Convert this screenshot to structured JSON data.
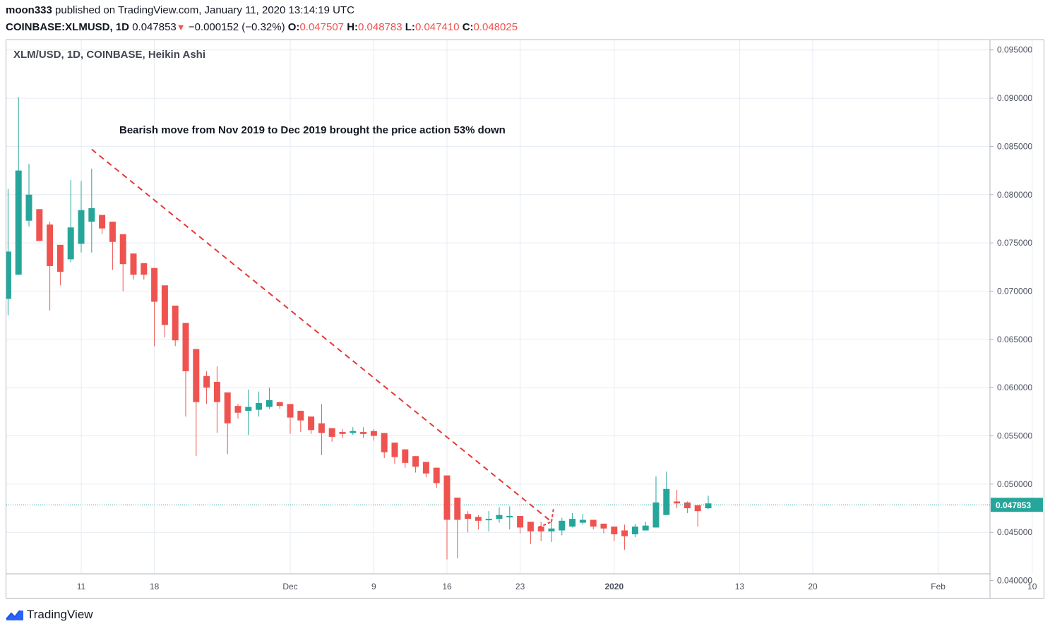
{
  "header": {
    "author": "moon333",
    "published_text": " published on TradingView.com, January 11, 2020 13:14:19 UTC",
    "symbol": "COINBASE:XLMUSD, 1D",
    "last": "0.047853",
    "change_arrow": "▼",
    "change": "−0.000152 (−0.32%)",
    "open_label": "O:",
    "open": "0.047507",
    "high_label": "H:",
    "high": "0.048783",
    "low_label": "L:",
    "low": "0.047410",
    "close_label": "C:",
    "close": "0.048025"
  },
  "footer": {
    "brand": "TradingView",
    "logo_icon": "tradingview-logo-icon"
  },
  "colors": {
    "up": "#26a69a",
    "down": "#ef5350",
    "grid": "#e6ebf2",
    "axis_text": "#4a4f5c",
    "annotation_line": "#e53935",
    "price_line": "#26a69a"
  },
  "chart_data": {
    "type": "candlestick",
    "title": "XLM/USD, 1D, COINBASE, Heikin Ashi",
    "annotation": "Bearish move from Nov 2019 to Dec 2019 brought the price action 53% down",
    "y_ticks": [
      "0.095000",
      "0.090000",
      "0.085000",
      "0.080000",
      "0.075000",
      "0.070000",
      "0.065000",
      "0.060000",
      "0.055000",
      "0.050000",
      "0.045000",
      "0.040000"
    ],
    "y_tick_values": [
      0.095,
      0.09,
      0.085,
      0.08,
      0.075,
      0.07,
      0.065,
      0.06,
      0.055,
      0.05,
      0.045,
      0.04
    ],
    "ylim": [
      0.04,
      0.0955
    ],
    "x_ticks": [
      {
        "label": "11",
        "day": 11,
        "bold": false
      },
      {
        "label": "18",
        "day": 18,
        "bold": false
      },
      {
        "label": "Dec",
        "day": 31,
        "bold": false
      },
      {
        "label": "9",
        "day": 39,
        "bold": false
      },
      {
        "label": "16",
        "day": 46,
        "bold": false
      },
      {
        "label": "23",
        "day": 53,
        "bold": false
      },
      {
        "label": "2020",
        "day": 62,
        "bold": true
      },
      {
        "label": "13",
        "day": 74,
        "bold": false
      },
      {
        "label": "20",
        "day": 81,
        "bold": false
      },
      {
        "label": "Feb",
        "day": 93,
        "bold": false
      },
      {
        "label": "10",
        "day": 102,
        "bold": false
      }
    ],
    "x_range_days": [
      4,
      103.5
    ],
    "last_price": 0.047853,
    "last_price_label": "0.047853",
    "trend_line": {
      "from": {
        "day": 12,
        "price": 0.0847
      },
      "to": {
        "day": 56,
        "price": 0.0461
      },
      "tail_to": {
        "day": 56.2,
        "price": 0.0475
      }
    },
    "candles": [
      {
        "day": 4,
        "o": 0.0692,
        "h": 0.0806,
        "l": 0.0675,
        "c": 0.0741
      },
      {
        "day": 5,
        "o": 0.0717,
        "h": 0.0901,
        "l": 0.0717,
        "c": 0.0825
      },
      {
        "day": 6,
        "o": 0.0773,
        "h": 0.0832,
        "l": 0.0767,
        "c": 0.08
      },
      {
        "day": 7,
        "o": 0.0785,
        "h": 0.0785,
        "l": 0.0753,
        "c": 0.0752
      },
      {
        "day": 8,
        "o": 0.0769,
        "h": 0.0772,
        "l": 0.068,
        "c": 0.0726
      },
      {
        "day": 9,
        "o": 0.0748,
        "h": 0.0748,
        "l": 0.0706,
        "c": 0.072
      },
      {
        "day": 10,
        "o": 0.0733,
        "h": 0.0815,
        "l": 0.073,
        "c": 0.0766
      },
      {
        "day": 11,
        "o": 0.0749,
        "h": 0.0814,
        "l": 0.074,
        "c": 0.0784
      },
      {
        "day": 12,
        "o": 0.0772,
        "h": 0.0827,
        "l": 0.074,
        "c": 0.0786
      },
      {
        "day": 13,
        "o": 0.0779,
        "h": 0.0779,
        "l": 0.0759,
        "c": 0.0765
      },
      {
        "day": 14,
        "o": 0.0772,
        "h": 0.0772,
        "l": 0.0722,
        "c": 0.0751
      },
      {
        "day": 15,
        "o": 0.0759,
        "h": 0.0759,
        "l": 0.07,
        "c": 0.0728
      },
      {
        "day": 16,
        "o": 0.0739,
        "h": 0.0739,
        "l": 0.0712,
        "c": 0.0717
      },
      {
        "day": 17,
        "o": 0.0729,
        "h": 0.0729,
        "l": 0.0712,
        "c": 0.0717
      },
      {
        "day": 18,
        "o": 0.0724,
        "h": 0.0724,
        "l": 0.0643,
        "c": 0.0689
      },
      {
        "day": 19,
        "o": 0.0706,
        "h": 0.0706,
        "l": 0.0652,
        "c": 0.0665
      },
      {
        "day": 20,
        "o": 0.0685,
        "h": 0.0685,
        "l": 0.0643,
        "c": 0.0649
      },
      {
        "day": 21,
        "o": 0.0667,
        "h": 0.0667,
        "l": 0.057,
        "c": 0.0617
      },
      {
        "day": 22,
        "o": 0.064,
        "h": 0.064,
        "l": 0.0529,
        "c": 0.0585
      },
      {
        "day": 23,
        "o": 0.0612,
        "h": 0.0617,
        "l": 0.0583,
        "c": 0.06
      },
      {
        "day": 24,
        "o": 0.0606,
        "h": 0.0622,
        "l": 0.0553,
        "c": 0.0585
      },
      {
        "day": 25,
        "o": 0.0595,
        "h": 0.0595,
        "l": 0.0531,
        "c": 0.0563
      },
      {
        "day": 26,
        "o": 0.0581,
        "h": 0.0583,
        "l": 0.0568,
        "c": 0.0574
      },
      {
        "day": 27,
        "o": 0.0576,
        "h": 0.0598,
        "l": 0.0551,
        "c": 0.058
      },
      {
        "day": 28,
        "o": 0.0577,
        "h": 0.0596,
        "l": 0.057,
        "c": 0.0584
      },
      {
        "day": 29,
        "o": 0.058,
        "h": 0.06,
        "l": 0.0578,
        "c": 0.0587
      },
      {
        "day": 30,
        "o": 0.0585,
        "h": 0.0585,
        "l": 0.0578,
        "c": 0.0581
      },
      {
        "day": 31,
        "o": 0.0583,
        "h": 0.0583,
        "l": 0.0552,
        "c": 0.0569
      },
      {
        "day": 32,
        "o": 0.0576,
        "h": 0.0576,
        "l": 0.0554,
        "c": 0.0566
      },
      {
        "day": 33,
        "o": 0.057,
        "h": 0.057,
        "l": 0.0552,
        "c": 0.0556
      },
      {
        "day": 34,
        "o": 0.0563,
        "h": 0.0583,
        "l": 0.053,
        "c": 0.0553
      },
      {
        "day": 35,
        "o": 0.0558,
        "h": 0.0558,
        "l": 0.0544,
        "c": 0.0549
      },
      {
        "day": 36,
        "o": 0.0554,
        "h": 0.0557,
        "l": 0.0548,
        "c": 0.0552
      },
      {
        "day": 37,
        "o": 0.0553,
        "h": 0.0559,
        "l": 0.0551,
        "c": 0.0555
      },
      {
        "day": 38,
        "o": 0.0554,
        "h": 0.0559,
        "l": 0.0548,
        "c": 0.0552
      },
      {
        "day": 39,
        "o": 0.0555,
        "h": 0.0557,
        "l": 0.0545,
        "c": 0.055
      },
      {
        "day": 40,
        "o": 0.0553,
        "h": 0.0553,
        "l": 0.0527,
        "c": 0.0533
      },
      {
        "day": 41,
        "o": 0.0543,
        "h": 0.0543,
        "l": 0.0521,
        "c": 0.0528
      },
      {
        "day": 42,
        "o": 0.0536,
        "h": 0.0536,
        "l": 0.0517,
        "c": 0.0522
      },
      {
        "day": 43,
        "o": 0.0529,
        "h": 0.0529,
        "l": 0.0512,
        "c": 0.0518
      },
      {
        "day": 44,
        "o": 0.0523,
        "h": 0.0523,
        "l": 0.0507,
        "c": 0.0511
      },
      {
        "day": 45,
        "o": 0.0517,
        "h": 0.0517,
        "l": 0.0496,
        "c": 0.0501
      },
      {
        "day": 46,
        "o": 0.0509,
        "h": 0.0509,
        "l": 0.0422,
        "c": 0.0463
      },
      {
        "day": 47,
        "o": 0.0486,
        "h": 0.0486,
        "l": 0.0423,
        "c": 0.0463
      },
      {
        "day": 48,
        "o": 0.0469,
        "h": 0.0472,
        "l": 0.045,
        "c": 0.0464
      },
      {
        "day": 49,
        "o": 0.0466,
        "h": 0.0468,
        "l": 0.0453,
        "c": 0.0462
      },
      {
        "day": 50,
        "o": 0.0464,
        "h": 0.0472,
        "l": 0.0451,
        "c": 0.0464
      },
      {
        "day": 51,
        "o": 0.0464,
        "h": 0.0476,
        "l": 0.046,
        "c": 0.0468
      },
      {
        "day": 52,
        "o": 0.0467,
        "h": 0.0477,
        "l": 0.0453,
        "c": 0.0467
      },
      {
        "day": 53,
        "o": 0.0467,
        "h": 0.0467,
        "l": 0.0449,
        "c": 0.0455
      },
      {
        "day": 54,
        "o": 0.0461,
        "h": 0.0461,
        "l": 0.0438,
        "c": 0.0451
      },
      {
        "day": 55,
        "o": 0.0456,
        "h": 0.0461,
        "l": 0.0441,
        "c": 0.0451
      },
      {
        "day": 56,
        "o": 0.0451,
        "h": 0.0462,
        "l": 0.044,
        "c": 0.0454
      },
      {
        "day": 57,
        "o": 0.0452,
        "h": 0.0465,
        "l": 0.0447,
        "c": 0.0462
      },
      {
        "day": 58,
        "o": 0.0456,
        "h": 0.047,
        "l": 0.0455,
        "c": 0.0464
      },
      {
        "day": 59,
        "o": 0.046,
        "h": 0.0469,
        "l": 0.0458,
        "c": 0.0463
      },
      {
        "day": 60,
        "o": 0.0463,
        "h": 0.0463,
        "l": 0.0453,
        "c": 0.0456
      },
      {
        "day": 61,
        "o": 0.0459,
        "h": 0.0459,
        "l": 0.0449,
        "c": 0.0454
      },
      {
        "day": 62,
        "o": 0.0456,
        "h": 0.0456,
        "l": 0.0441,
        "c": 0.0448
      },
      {
        "day": 63,
        "o": 0.0452,
        "h": 0.0458,
        "l": 0.0432,
        "c": 0.0446
      },
      {
        "day": 64,
        "o": 0.0448,
        "h": 0.0459,
        "l": 0.0445,
        "c": 0.0456
      },
      {
        "day": 65,
        "o": 0.0452,
        "h": 0.0461,
        "l": 0.0452,
        "c": 0.0457
      },
      {
        "day": 66,
        "o": 0.0455,
        "h": 0.0508,
        "l": 0.0455,
        "c": 0.0481
      },
      {
        "day": 67,
        "o": 0.0468,
        "h": 0.0513,
        "l": 0.0468,
        "c": 0.0495
      },
      {
        "day": 68,
        "o": 0.0482,
        "h": 0.0494,
        "l": 0.0475,
        "c": 0.048
      },
      {
        "day": 69,
        "o": 0.0481,
        "h": 0.0482,
        "l": 0.047,
        "c": 0.0475
      },
      {
        "day": 70,
        "o": 0.0478,
        "h": 0.0478,
        "l": 0.0456,
        "c": 0.0472
      },
      {
        "day": 71,
        "o": 0.0475,
        "h": 0.0488,
        "l": 0.0474,
        "c": 0.048
      }
    ]
  }
}
